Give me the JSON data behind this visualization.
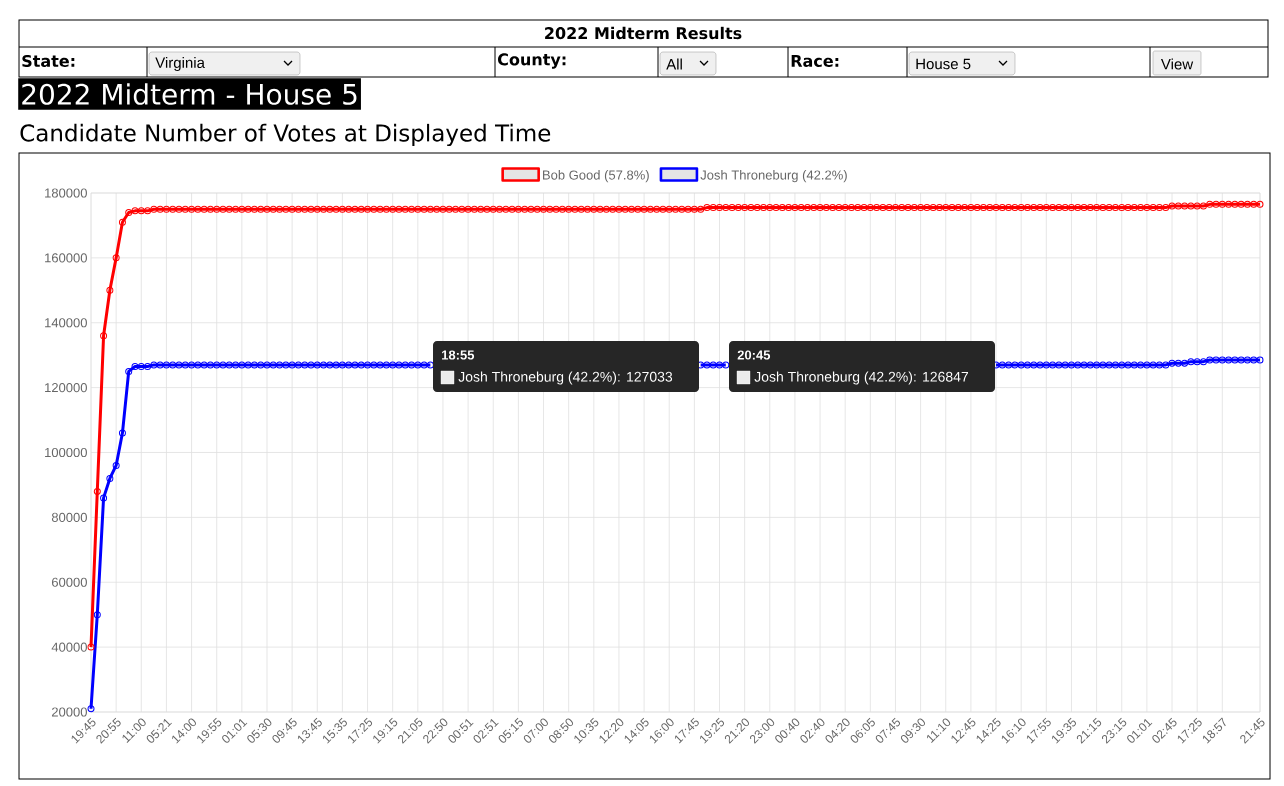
{
  "chart_data": {
    "type": "line",
    "title": "2022 Midterm - House 5",
    "subtitle": "Candidate Number of Votes at Displayed Time",
    "annotations": [
      "2022 Midterm Results",
      "State:",
      "Virginia",
      "County:",
      "All",
      "Race:",
      "House 5",
      "View",
      "18:55",
      "Josh Throneburg (42.2%): 127033",
      "20:45",
      "Josh Throneburg (42.2%): 126847"
    ],
    "categories": [
      "19:45",
      null,
      null,
      null,
      "20:55",
      null,
      null,
      null,
      "11:00",
      null,
      null,
      null,
      "05:21",
      null,
      null,
      null,
      "14:00",
      null,
      null,
      null,
      "19:55",
      null,
      null,
      null,
      "01:01",
      null,
      null,
      null,
      "05:30",
      null,
      null,
      null,
      "09:45",
      null,
      null,
      null,
      "13:45",
      null,
      null,
      null,
      "15:35",
      null,
      null,
      null,
      "17:25",
      null,
      null,
      null,
      "19:15",
      null,
      null,
      null,
      "21:05",
      null,
      null,
      null,
      "22:50",
      null,
      null,
      null,
      "00:51",
      null,
      null,
      null,
      "02:51",
      null,
      null,
      null,
      "05:15",
      null,
      null,
      null,
      "07:00",
      null,
      null,
      null,
      "08:50",
      null,
      null,
      null,
      "10:35",
      null,
      null,
      null,
      "12:20",
      null,
      null,
      null,
      "14:05",
      null,
      null,
      null,
      "16:00",
      null,
      null,
      null,
      "17:45",
      null,
      null,
      null,
      "19:25",
      null,
      null,
      null,
      "21:20",
      null,
      null,
      null,
      "23:00",
      null,
      null,
      null,
      "00:40",
      null,
      null,
      null,
      "02:40",
      null,
      null,
      null,
      "04:20",
      null,
      null,
      null,
      "06:05",
      null,
      null,
      null,
      "07:45",
      null,
      null,
      null,
      "09:30",
      null,
      null,
      null,
      "11:10",
      null,
      null,
      null,
      "12:45",
      null,
      null,
      null,
      "14:25",
      null,
      null,
      null,
      "16:10",
      null,
      null,
      null,
      "17:55",
      null,
      null,
      null,
      "19:35",
      null,
      null,
      null,
      "21:15",
      null,
      null,
      null,
      "23:15",
      null,
      null,
      null,
      "01:01",
      null,
      null,
      null,
      "02:45",
      null,
      null,
      null,
      "17:25",
      null,
      null,
      null,
      "18:57",
      null,
      null,
      null,
      null,
      null,
      "21:45"
    ],
    "series": [
      {
        "name": "Bob Good (57.8%)",
        "color": "#ff0000",
        "values": [
          40000,
          88000,
          136000,
          150000,
          160000,
          171000,
          174000,
          174500,
          174500,
          174500,
          175000,
          175000,
          175000,
          175000,
          175000,
          175000,
          175000,
          175000,
          175000,
          175000,
          175000,
          175000,
          175000,
          175000,
          175000,
          175000,
          175000,
          175000,
          175000,
          175000,
          175000,
          175000,
          175000,
          175000,
          175000,
          175000,
          175000,
          175000,
          175000,
          175000,
          175000,
          175000,
          175000,
          175000,
          175000,
          175000,
          175000,
          175000,
          175000,
          175000,
          175000,
          175000,
          175000,
          175000,
          175000,
          175000,
          175000,
          175000,
          175000,
          175000,
          175000,
          175000,
          175000,
          175000,
          175000,
          175000,
          175000,
          175000,
          175000,
          175000,
          175000,
          175000,
          175000,
          175000,
          175000,
          175000,
          175000,
          175000,
          175000,
          175000,
          175000,
          175000,
          175000,
          175000,
          175000,
          175000,
          175000,
          175000,
          175000,
          175000,
          175000,
          175000,
          175000,
          175000,
          175000,
          175000,
          175000,
          175000,
          175500,
          175500,
          175500,
          175500,
          175500,
          175500,
          175500,
          175500,
          175500,
          175500,
          175500,
          175500,
          175500,
          175500,
          175500,
          175500,
          175500,
          175500,
          175500,
          175500,
          175500,
          175500,
          175500,
          175500,
          175500,
          175500,
          175500,
          175500,
          175500,
          175500,
          175500,
          175500,
          175500,
          175500,
          175500,
          175500,
          175500,
          175500,
          175500,
          175500,
          175500,
          175500,
          175500,
          175500,
          175500,
          175500,
          175500,
          175500,
          175500,
          175500,
          175500,
          175500,
          175500,
          175500,
          175500,
          175500,
          175500,
          175500,
          175500,
          175500,
          175500,
          175500,
          175500,
          175500,
          175500,
          175500,
          175500,
          175500,
          175500,
          175500,
          175500,
          175500,
          175500,
          175500,
          176000,
          176000,
          176000,
          176000,
          176000,
          176000,
          176500,
          176500,
          176500,
          176500,
          176500,
          176500,
          176500,
          176500,
          176500
        ]
      },
      {
        "name": "Josh Throneburg (42.2%)",
        "color": "#0000ff",
        "values": [
          21000,
          50000,
          86000,
          92000,
          96000,
          106000,
          125000,
          126500,
          126500,
          126500,
          127000,
          127000,
          127000,
          127000,
          127000,
          127000,
          127000,
          127000,
          127000,
          127000,
          127000,
          127000,
          127000,
          127000,
          127000,
          127000,
          127000,
          127000,
          127000,
          127000,
          127000,
          127000,
          127000,
          127000,
          127000,
          127000,
          127000,
          127000,
          127000,
          127000,
          127000,
          127000,
          127000,
          127000,
          127000,
          127000,
          127000,
          127000,
          127000,
          127000,
          127000,
          127000,
          127000,
          127000,
          127000,
          null,
          null,
          null,
          null,
          null,
          null,
          null,
          null,
          null,
          null,
          null,
          null,
          null,
          null,
          null,
          null,
          null,
          null,
          null,
          null,
          null,
          null,
          null,
          null,
          null,
          null,
          null,
          null,
          null,
          null,
          null,
          null,
          null,
          null,
          null,
          null,
          null,
          null,
          null,
          null,
          null,
          null,
          127000,
          127000,
          127000,
          127000,
          127000,
          null,
          null,
          null,
          null,
          null,
          null,
          null,
          null,
          null,
          null,
          null,
          null,
          null,
          null,
          null,
          null,
          null,
          null,
          null,
          null,
          null,
          null,
          null,
          null,
          null,
          null,
          null,
          null,
          null,
          null,
          null,
          null,
          null,
          null,
          null,
          null,
          null,
          null,
          null,
          null,
          null,
          null,
          127000,
          127000,
          127000,
          127000,
          127000,
          127000,
          127000,
          127000,
          127000,
          127000,
          127000,
          127000,
          127000,
          127000,
          127000,
          127000,
          127000,
          127000,
          127000,
          127000,
          127000,
          127000,
          127000,
          127000,
          127000,
          127000,
          127000,
          127000,
          127500,
          127500,
          127500,
          128000,
          128000,
          128000,
          128500,
          128500,
          128500,
          128500,
          128500,
          128500,
          128500,
          128500,
          128500
        ]
      }
    ],
    "ylim": [
      20000,
      180000
    ],
    "yticks": [
      20000,
      40000,
      60000,
      80000,
      100000,
      120000,
      140000,
      160000,
      180000
    ],
    "grid": true,
    "legend": "top",
    "marker": "circle",
    "line_style": "solid"
  }
}
